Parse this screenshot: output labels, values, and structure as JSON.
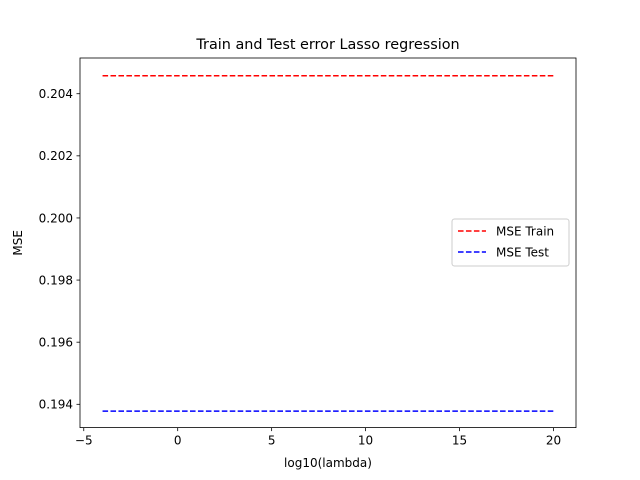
{
  "chart_data": {
    "type": "line",
    "title": "Train and Test error Lasso regression",
    "xlabel": "log10(lambda)",
    "ylabel": "MSE",
    "xlim": [
      -5.2,
      21.2
    ],
    "ylim": [
      0.19325,
      0.20515
    ],
    "x_ticks": [
      -5,
      0,
      5,
      10,
      15,
      20
    ],
    "y_ticks": [
      0.194,
      0.196,
      0.198,
      0.2,
      0.202,
      0.204
    ],
    "grid": false,
    "legend_position": "center-right",
    "series": [
      {
        "name": "MSE Train",
        "color": "#ff0000",
        "style": "dashed",
        "x": [
          -4,
          20
        ],
        "y": [
          0.20458,
          0.20458
        ]
      },
      {
        "name": "MSE Test",
        "color": "#0000ff",
        "style": "dashed",
        "x": [
          -4,
          20
        ],
        "y": [
          0.19378,
          0.19378
        ]
      }
    ]
  }
}
